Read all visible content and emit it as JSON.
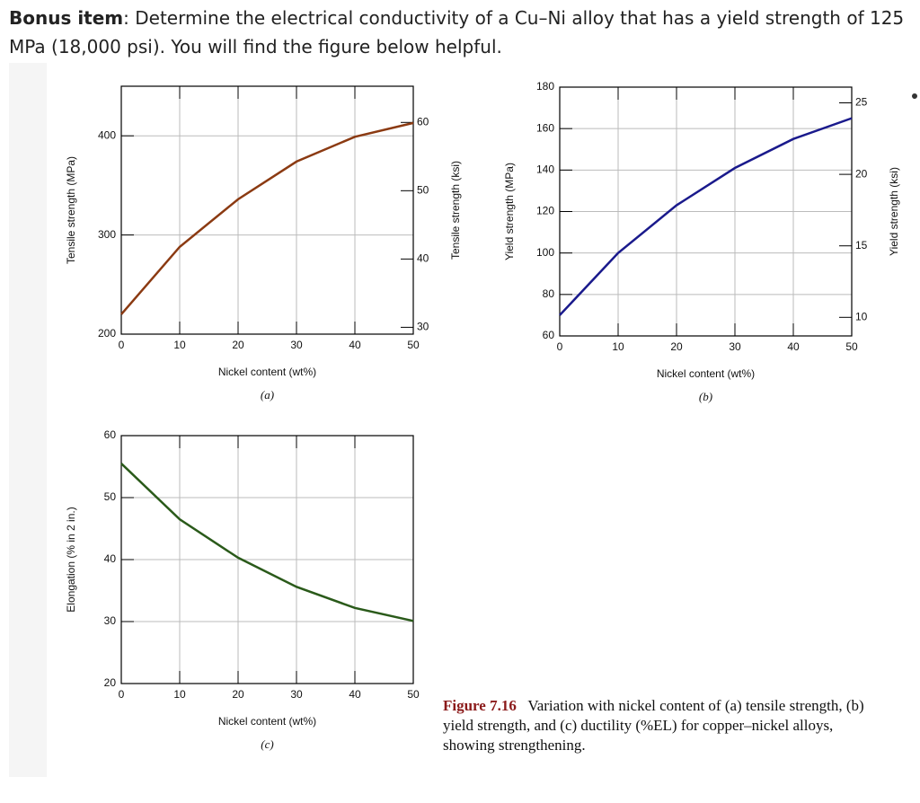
{
  "question": {
    "lead": "Bonus item",
    "text": ": Determine the electrical conductivity of a Cu–Ni alloy that has a yield strength of 125 MPa (18,000 psi). You will find the figure below helpful."
  },
  "caption": {
    "label": "Figure 7.16",
    "text": "Variation with nickel content of (a) tensile strength, (b) yield strength, and (c) ductility (%EL) for copper–nickel alloys, showing strengthening."
  },
  "chart_data": [
    {
      "type": "line",
      "label": "(a)",
      "xlabel": "Nickel content (wt%)",
      "ylabel": "Tensile strength (MPa)",
      "y2label": "Tensile strength (ksi)",
      "x": [
        0,
        10,
        20,
        30,
        40,
        50
      ],
      "values": [
        220,
        288,
        336,
        374,
        399,
        413
      ],
      "color": "#8b3a12",
      "xlim": [
        0,
        50
      ],
      "xticks": [
        0,
        10,
        20,
        30,
        40,
        50
      ],
      "ylim": [
        200,
        450
      ],
      "yticks": [
        200,
        300,
        400
      ],
      "y2lim": [
        29,
        65.3
      ],
      "y2ticks": [
        30,
        40,
        50,
        60
      ],
      "grid": true
    },
    {
      "type": "line",
      "label": "(b)",
      "xlabel": "Nickel content (wt%)",
      "ylabel": "Yield strength (MPa)",
      "y2label": "Yield strength (ksi)",
      "x": [
        0,
        10,
        20,
        30,
        40,
        50
      ],
      "values": [
        70,
        100,
        123,
        141,
        155,
        165
      ],
      "color": "#1a1a8c",
      "xlim": [
        0,
        50
      ],
      "xticks": [
        0,
        10,
        20,
        30,
        40,
        50
      ],
      "ylim": [
        60,
        180
      ],
      "yticks": [
        60,
        80,
        100,
        120,
        140,
        160,
        180
      ],
      "y2lim": [
        8.7,
        26.1
      ],
      "y2ticks": [
        10,
        15,
        20,
        25
      ],
      "grid": true
    },
    {
      "type": "line",
      "label": "(c)",
      "xlabel": "Nickel content (wt%)",
      "ylabel": "Elongation (% in 2 in.)",
      "x": [
        0,
        10,
        20,
        30,
        40,
        50
      ],
      "values": [
        55.5,
        46.5,
        40.3,
        35.6,
        32.2,
        30.1
      ],
      "color": "#2a5a1a",
      "xlim": [
        0,
        50
      ],
      "xticks": [
        0,
        10,
        20,
        30,
        40,
        50
      ],
      "ylim": [
        20,
        60
      ],
      "yticks": [
        20,
        30,
        40,
        50,
        60
      ],
      "grid": true
    }
  ]
}
